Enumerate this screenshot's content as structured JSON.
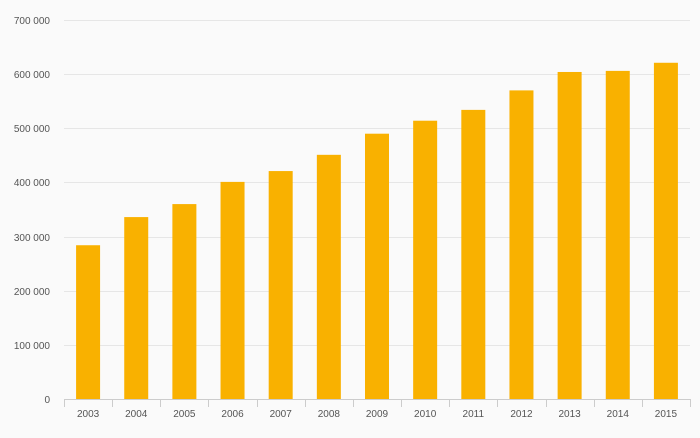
{
  "chart_data": {
    "type": "bar",
    "title": "",
    "xlabel": "",
    "ylabel": "",
    "categories": [
      "2003",
      "2004",
      "2005",
      "2006",
      "2007",
      "2008",
      "2009",
      "2010",
      "2011",
      "2012",
      "2013",
      "2014",
      "2015"
    ],
    "values": [
      284000,
      336000,
      360000,
      401000,
      421000,
      451000,
      490000,
      514000,
      534000,
      570000,
      604000,
      606000,
      621000
    ],
    "ylim": [
      0,
      700000
    ],
    "yticks": [
      0,
      100000,
      200000,
      300000,
      400000,
      500000,
      600000,
      700000
    ],
    "ytick_labels": [
      "0",
      "100 000",
      "200 000",
      "300 000",
      "400 000",
      "500 000",
      "600 000",
      "700 000"
    ],
    "grid": true,
    "legend": "none"
  },
  "colors": {
    "bar": "#f9b100",
    "grid": "#e6e6e6",
    "axis": "#cccccc",
    "background": "#fafafa",
    "label": "#555555"
  }
}
